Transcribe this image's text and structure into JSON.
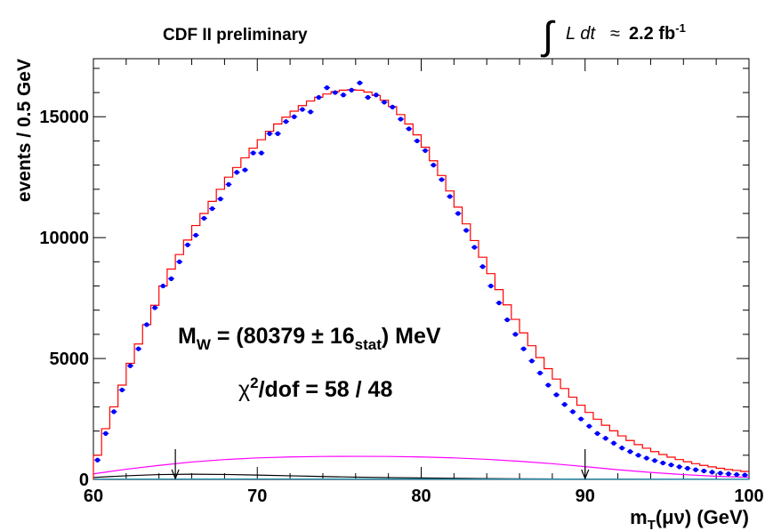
{
  "chart_data": {
    "type": "line",
    "experiment_label": "CDF II preliminary",
    "luminosity": {
      "integral_symbol": "∫",
      "text": "L dt",
      "approx": "≈",
      "value": "2.2 fb",
      "exponent": "-1"
    },
    "xlabel": {
      "main": "m",
      "sub": "T",
      "rest": "(μν) (GeV)"
    },
    "ylabel": "events / 0.5 GeV",
    "xlim": [
      60,
      100
    ],
    "ylim": [
      0,
      17400
    ],
    "x_ticks": [
      60,
      70,
      80,
      90,
      100
    ],
    "x_tick_labels": [
      "60",
      "70",
      "80",
      "90",
      "100"
    ],
    "y_ticks": [
      0,
      5000,
      10000,
      15000
    ],
    "y_tick_labels": [
      "0",
      "5000",
      "10000",
      "15000"
    ],
    "fit_range_markers": [
      65,
      90
    ],
    "annotations": {
      "mass": {
        "pre": "M",
        "sub1": "W",
        "mid": " = (80379 ± 16",
        "sub2": "stat",
        "post": ") MeV"
      },
      "chi2": {
        "pre": "χ",
        "sup": "2",
        "post": "/dof = 58 / 48"
      }
    },
    "bin_edges_start": 60,
    "bin_width": 0.5,
    "series": [
      {
        "role": "data",
        "color": "#0000ff",
        "x": [
          60.25,
          60.75,
          61.25,
          61.75,
          62.25,
          62.75,
          63.25,
          63.75,
          64.25,
          64.75,
          65.25,
          65.75,
          66.25,
          66.75,
          67.25,
          67.75,
          68.25,
          68.75,
          69.25,
          69.75,
          70.25,
          70.75,
          71.25,
          71.75,
          72.25,
          72.75,
          73.25,
          73.75,
          74.25,
          74.75,
          75.25,
          75.75,
          76.25,
          76.75,
          77.25,
          77.75,
          78.25,
          78.75,
          79.25,
          79.75,
          80.25,
          80.75,
          81.25,
          81.75,
          82.25,
          82.75,
          83.25,
          83.75,
          84.25,
          84.75,
          85.25,
          85.75,
          86.25,
          86.75,
          87.25,
          87.75,
          88.25,
          88.75,
          89.25,
          89.75,
          90.25,
          90.75,
          91.25,
          91.75,
          92.25,
          92.75,
          93.25,
          93.75,
          94.25,
          94.75,
          95.25,
          95.75,
          96.25,
          96.75,
          97.25,
          97.75,
          98.25,
          98.75,
          99.25,
          99.75
        ],
        "values": [
          800,
          1900,
          2800,
          3700,
          4700,
          5400,
          6400,
          7100,
          8000,
          8300,
          9000,
          9700,
          10100,
          10800,
          11200,
          11600,
          12200,
          12700,
          12800,
          13500,
          13500,
          14300,
          14300,
          14800,
          15000,
          15300,
          15200,
          15800,
          16200,
          16000,
          15900,
          16100,
          16400,
          15800,
          15900,
          15600,
          15400,
          14900,
          14500,
          14000,
          13600,
          13000,
          12400,
          11700,
          11000,
          10300,
          9600,
          8800,
          8000,
          7300,
          6600,
          6000,
          5400,
          4900,
          4400,
          3900,
          3500,
          3100,
          2800,
          2500,
          2200,
          1900,
          1700,
          1500,
          1300,
          1150,
          1000,
          880,
          780,
          680,
          600,
          520,
          460,
          400,
          350,
          300,
          260,
          230,
          200,
          180
        ]
      },
      {
        "role": "fit",
        "color": "#ff0000",
        "values": [
          1000,
          2100,
          3000,
          3900,
          4800,
          5600,
          6400,
          7200,
          8000,
          8700,
          9300,
          9900,
          10500,
          11000,
          11500,
          12000,
          12500,
          12900,
          13300,
          13700,
          14050,
          14400,
          14700,
          14980,
          15230,
          15460,
          15650,
          15810,
          15940,
          16040,
          16100,
          16120,
          16100,
          16020,
          15880,
          15680,
          15420,
          15090,
          14700,
          14250,
          13740,
          13180,
          12570,
          11930,
          11260,
          10570,
          9880,
          9190,
          8510,
          7850,
          7220,
          6620,
          6060,
          5530,
          5040,
          4580,
          4150,
          3760,
          3400,
          3070,
          2770,
          2490,
          2240,
          2010,
          1800,
          1610,
          1440,
          1290,
          1150,
          1030,
          920,
          820,
          730,
          650,
          580,
          520,
          460,
          410,
          370,
          330
        ]
      },
      {
        "role": "background",
        "color": "#ff00ff",
        "x": [
          60,
          62,
          64,
          66,
          68,
          70,
          72,
          74,
          76,
          78,
          80,
          82,
          84,
          86,
          88,
          90,
          92,
          94,
          96,
          98,
          100
        ],
        "values": [
          230,
          420,
          580,
          720,
          820,
          890,
          930,
          950,
          955,
          950,
          930,
          890,
          830,
          750,
          650,
          530,
          400,
          290,
          200,
          130,
          90
        ]
      },
      {
        "role": "background",
        "color": "#000000",
        "x": [
          60,
          62,
          64,
          66,
          68,
          70,
          72,
          74,
          76,
          78,
          80,
          82,
          84,
          86,
          88,
          90,
          92,
          94,
          96,
          98,
          100
        ],
        "values": [
          80,
          150,
          200,
          215,
          205,
          180,
          150,
          120,
          95,
          75,
          60,
          45,
          35,
          25,
          18,
          12,
          8,
          6,
          4,
          3,
          2
        ]
      },
      {
        "role": "background",
        "color": "#1e90b4",
        "x": [
          60,
          70,
          80,
          90,
          100
        ],
        "values": [
          15,
          20,
          18,
          12,
          8
        ]
      }
    ]
  }
}
